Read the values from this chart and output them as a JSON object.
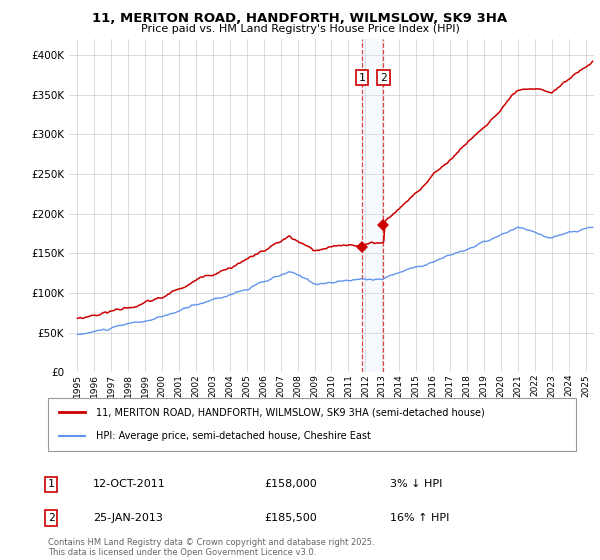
{
  "title_line1": "11, MERITON ROAD, HANDFORTH, WILMSLOW, SK9 3HA",
  "title_line2": "Price paid vs. HM Land Registry's House Price Index (HPI)",
  "legend_label1": "11, MERITON ROAD, HANDFORTH, WILMSLOW, SK9 3HA (semi-detached house)",
  "legend_label2": "HPI: Average price, semi-detached house, Cheshire East",
  "annotation1_date": "12-OCT-2011",
  "annotation1_price": "£158,000",
  "annotation1_hpi": "3% ↓ HPI",
  "annotation2_date": "25-JAN-2013",
  "annotation2_price": "£185,500",
  "annotation2_hpi": "16% ↑ HPI",
  "footer": "Contains HM Land Registry data © Crown copyright and database right 2025.\nThis data is licensed under the Open Government Licence v3.0.",
  "sale1_year": 2011.79,
  "sale1_price": 158000,
  "sale2_year": 2013.07,
  "sale2_price": 185500,
  "hpi_color": "#6495ED",
  "price_color": "#CC0000",
  "vline_color": "#DD4444",
  "shade_color": "#DCE8F8",
  "background_color": "#ffffff",
  "ylim_min": 0,
  "ylim_max": 420000,
  "xlim_min": 1994.5,
  "xlim_max": 2025.5,
  "hpi_seed": 42,
  "prop_seed": 99
}
